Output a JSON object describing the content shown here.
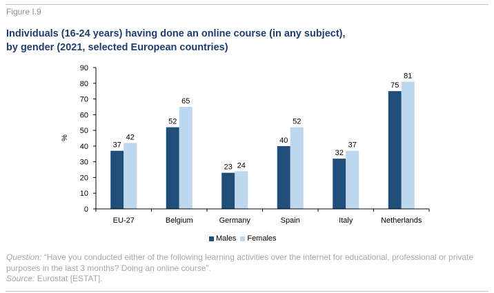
{
  "figure_label": "Figure I.9",
  "title_line1": "Individuals (16-24 years) having done an online course (in any subject),",
  "title_line2": "by gender (2021, selected European countries)",
  "colors": {
    "males": "#1f4e79",
    "females": "#bdd7ee",
    "axis": "#000000"
  },
  "legend": {
    "males": "Males",
    "females": "Females"
  },
  "notes": {
    "question_label": "Question:",
    "question_text": " “Have you conducted either of the following learning activities over the internet for educational, professional or private purposes in the last 3 months? Doing an online course”.",
    "source_label": "Source:",
    "source_text": " Eurostat [ESTAT]."
  },
  "chart_data": {
    "type": "bar",
    "categories": [
      "EU-27",
      "Belgium",
      "Germany",
      "Spain",
      "Italy",
      "Netherlands"
    ],
    "series": [
      {
        "name": "Males",
        "values": [
          37,
          52,
          23,
          40,
          32,
          75
        ]
      },
      {
        "name": "Females",
        "values": [
          42,
          65,
          24,
          52,
          37,
          81
        ]
      }
    ],
    "ylabel": "%",
    "ylim": [
      0,
      90
    ],
    "yticks": [
      0,
      10,
      20,
      30,
      40,
      50,
      60,
      70,
      80,
      90
    ],
    "grid": false,
    "legend_position": "bottom"
  }
}
